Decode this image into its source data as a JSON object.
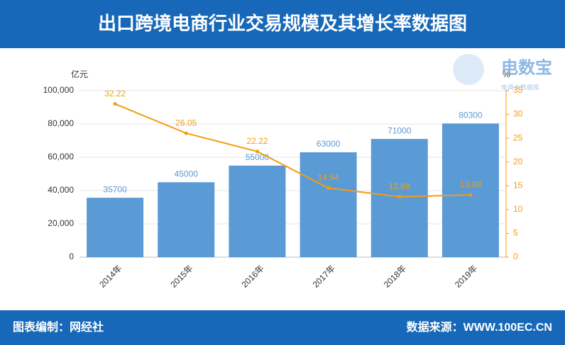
{
  "header": {
    "title": "出口跨境电商行业交易规模及其增长率数据图"
  },
  "watermark": {
    "brand": "电数宝",
    "tagline": "电商大数据库"
  },
  "chart_data": {
    "type": "bar-line",
    "y_label": "亿元",
    "y2_label": "%",
    "categories": [
      "2014年",
      "2015年",
      "2016年",
      "2017年",
      "2018年",
      "2019年"
    ],
    "series": [
      {
        "type": "bar",
        "color": "#5b9bd5",
        "values": [
          35700,
          45000,
          55000,
          63000,
          71000,
          80300
        ]
      },
      {
        "type": "line",
        "axis": "y2",
        "color": "#f39c12",
        "values": [
          32.22,
          26.05,
          22.22,
          14.54,
          12.69,
          13.09
        ]
      }
    ],
    "ylim": [
      0,
      100000
    ],
    "yticks": [
      0,
      {
        "value": 20000,
        "label": "20,000"
      },
      {
        "value": 40000,
        "label": "40,000"
      },
      {
        "value": 60000,
        "label": "60,000"
      },
      {
        "value": 80000,
        "label": "80,000"
      },
      {
        "value": 100000,
        "label": "100,000"
      }
    ],
    "y2lim": [
      0,
      35
    ],
    "y2ticks": [
      0,
      5,
      10,
      15,
      20,
      25,
      30,
      35
    ],
    "grid": true
  },
  "footer": {
    "left": "图表编制：网经社",
    "right": "数据来源：WWW.100EC.CN"
  }
}
